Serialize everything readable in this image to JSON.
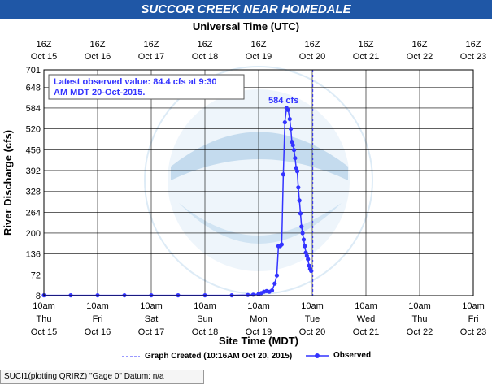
{
  "header": {
    "title": "SUCCOR CREEK NEAR HOMEDALE",
    "utc_axis_title": "Universal Time (UTC)"
  },
  "annotation": {
    "latest_line1": "Latest observed value: 84.4 cfs at 9:30",
    "latest_line2": "AM MDT 20-Oct-2015.",
    "peak_label": "584 cfs"
  },
  "legend": {
    "graph_created": "Graph Created (10:16AM Oct 20, 2015)",
    "observed": "Observed"
  },
  "footer": {
    "text": "SUCI1(plotting QRIRZ) \"Gage 0\" Datum: n/a"
  },
  "colors": {
    "title_bg": "#1f57a6",
    "series": "#3333ff",
    "grid": "#000000",
    "created_line": "#3333ff"
  },
  "chart_data": {
    "type": "line",
    "title": "SUCCOR CREEK NEAR HOMEDALE",
    "xlabel": "Site Time (MDT)",
    "ylabel": "River Discharge (cfs)",
    "top_axis_label": "Universal Time (UTC)",
    "x_unit": "days since Oct 15 10am MDT",
    "xlim": [
      0,
      8
    ],
    "ylim": [
      8,
      701
    ],
    "yticks": [
      8,
      72,
      136,
      200,
      264,
      328,
      392,
      456,
      520,
      584,
      648,
      701
    ],
    "bottom_ticks": [
      {
        "l1": "10am",
        "l2": "Thu",
        "l3": "Oct 15"
      },
      {
        "l1": "10am",
        "l2": "Fri",
        "l3": "Oct 16"
      },
      {
        "l1": "10am",
        "l2": "Sat",
        "l3": "Oct 17"
      },
      {
        "l1": "10am",
        "l2": "Sun",
        "l3": "Oct 18"
      },
      {
        "l1": "10am",
        "l2": "Mon",
        "l3": "Oct 19"
      },
      {
        "l1": "10am",
        "l2": "Tue",
        "l3": "Oct 20"
      },
      {
        "l1": "10am",
        "l2": "Wed",
        "l3": "Oct 21"
      },
      {
        "l1": "10am",
        "l2": "Thu",
        "l3": "Oct 22"
      },
      {
        "l1": "10am",
        "l2": "Fri",
        "l3": "Oct 23"
      }
    ],
    "top_ticks": [
      {
        "l1": "16Z",
        "l2": "Oct 15"
      },
      {
        "l1": "16Z",
        "l2": "Oct 16"
      },
      {
        "l1": "16Z",
        "l2": "Oct 17"
      },
      {
        "l1": "16Z",
        "l2": "Oct 18"
      },
      {
        "l1": "16Z",
        "l2": "Oct 19"
      },
      {
        "l1": "16Z",
        "l2": "Oct 20"
      },
      {
        "l1": "16Z",
        "l2": "Oct 21"
      },
      {
        "l1": "16Z",
        "l2": "Oct 22"
      },
      {
        "l1": "16Z",
        "l2": "Oct 23"
      }
    ],
    "graph_created_x": 5.01,
    "series": [
      {
        "name": "Observed",
        "x": [
          0.0,
          0.5,
          1.0,
          1.5,
          2.0,
          2.5,
          3.0,
          3.5,
          3.8,
          3.9,
          4.0,
          4.05,
          4.1,
          4.15,
          4.2,
          4.25,
          4.3,
          4.34,
          4.37,
          4.4,
          4.43,
          4.46,
          4.49,
          4.52,
          4.55,
          4.58,
          4.6,
          4.62,
          4.64,
          4.66,
          4.68,
          4.7,
          4.72,
          4.74,
          4.76,
          4.78,
          4.8,
          4.82,
          4.84,
          4.86,
          4.88,
          4.9,
          4.92,
          4.94,
          4.96,
          4.98
        ],
        "y": [
          9,
          9,
          9,
          9,
          9,
          9,
          9,
          9,
          10,
          11,
          13,
          16,
          20,
          22,
          20,
          24,
          45,
          70,
          160,
          160,
          165,
          380,
          540,
          584,
          578,
          550,
          520,
          480,
          470,
          455,
          430,
          400,
          390,
          340,
          300,
          260,
          220,
          200,
          180,
          160,
          140,
          130,
          120,
          100,
          90,
          84
        ]
      }
    ]
  }
}
